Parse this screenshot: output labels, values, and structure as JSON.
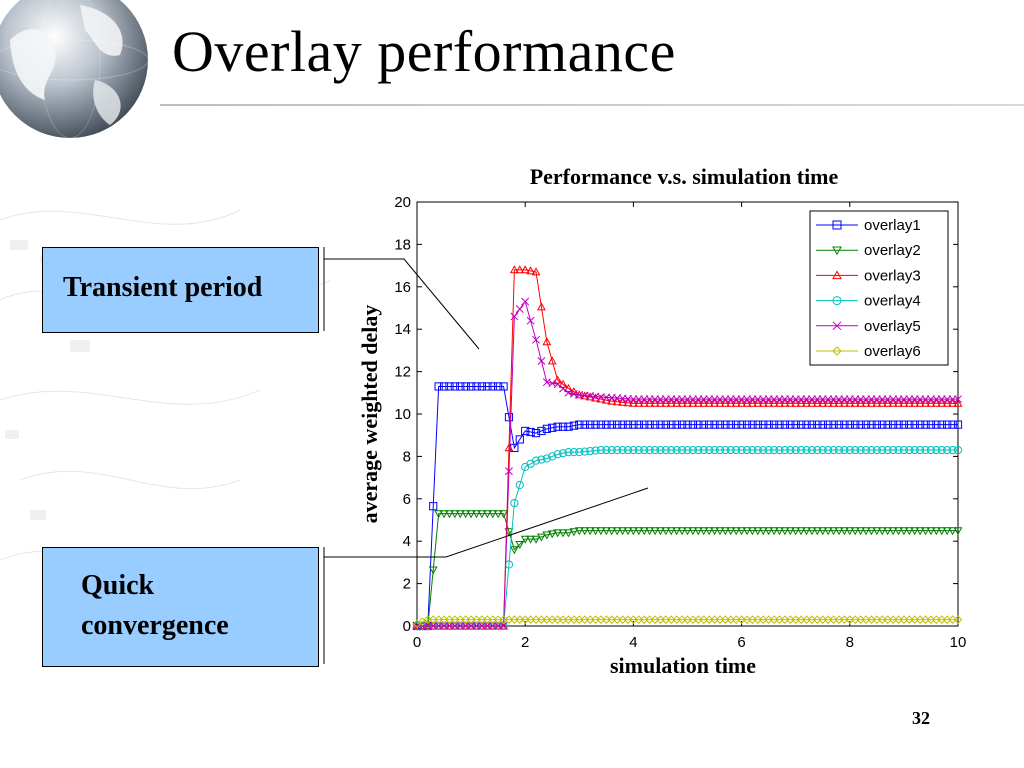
{
  "slide": {
    "title": "Overlay performance",
    "slide_number": "32",
    "callout_transient": "Transient period",
    "callout_quick": "Quick\nconvergence"
  },
  "icons": {
    "globe": "globe-icon"
  },
  "chart_data": {
    "type": "line",
    "title": "Performance v.s. simulation time",
    "xlabel": "simulation time",
    "ylabel": "average weighted delay",
    "xlim": [
      0,
      10
    ],
    "ylim": [
      0,
      20
    ],
    "xticks": [
      "0",
      "2",
      "4",
      "6",
      "8",
      "10"
    ],
    "yticks": [
      "0",
      "2",
      "4",
      "6",
      "8",
      "10",
      "12",
      "14",
      "16",
      "18",
      "20"
    ],
    "grid": false,
    "legend_position": "top-right",
    "series": [
      {
        "name": "overlay1",
        "color": "#0000ff",
        "marker": "square",
        "x": [
          0,
          0.2,
          0.4,
          1.6,
          1.8,
          2.0,
          2.2,
          2.4,
          2.6,
          2.8,
          3.0,
          3.4,
          4.0,
          10.0
        ],
        "y": [
          0,
          0,
          11.3,
          11.3,
          8.4,
          9.2,
          9.1,
          9.3,
          9.4,
          9.4,
          9.5,
          9.5,
          9.5,
          9.5
        ]
      },
      {
        "name": "overlay2",
        "color": "#008000",
        "marker": "triangle-down",
        "x": [
          0,
          0.2,
          0.4,
          1.6,
          1.8,
          2.0,
          2.2,
          2.4,
          2.6,
          2.8,
          3.0,
          3.4,
          4.0,
          10.0
        ],
        "y": [
          0,
          0,
          5.3,
          5.3,
          3.6,
          4.1,
          4.1,
          4.3,
          4.4,
          4.4,
          4.5,
          4.5,
          4.5,
          4.5
        ]
      },
      {
        "name": "overlay3",
        "color": "#ff0000",
        "marker": "triangle-up",
        "x": [
          0,
          1.6,
          1.8,
          2.0,
          2.2,
          2.4,
          2.6,
          2.8,
          3.0,
          3.2,
          3.6,
          4.0,
          10.0
        ],
        "y": [
          0,
          0,
          16.8,
          16.8,
          16.7,
          13.4,
          11.6,
          11.2,
          10.9,
          10.8,
          10.6,
          10.5,
          10.5
        ]
      },
      {
        "name": "overlay4",
        "color": "#00bfbf",
        "marker": "circle",
        "x": [
          0,
          1.6,
          1.8,
          2.0,
          2.2,
          2.4,
          2.6,
          2.8,
          3.0,
          3.4,
          4.0,
          10.0
        ],
        "y": [
          0,
          0,
          5.8,
          7.5,
          7.8,
          7.9,
          8.1,
          8.2,
          8.2,
          8.3,
          8.3,
          8.3
        ]
      },
      {
        "name": "overlay5",
        "color": "#bf00bf",
        "marker": "x",
        "x": [
          0,
          1.6,
          1.8,
          2.0,
          2.2,
          2.4,
          2.6,
          2.8,
          3.0,
          3.4,
          4.0,
          10.0
        ],
        "y": [
          0,
          0,
          14.6,
          15.3,
          13.5,
          11.5,
          11.4,
          11.0,
          10.9,
          10.8,
          10.7,
          10.7
        ]
      },
      {
        "name": "overlay6",
        "color": "#bfbf00",
        "marker": "diamond",
        "x": [
          0,
          0.2,
          10.0
        ],
        "y": [
          0.1,
          0.3,
          0.3
        ]
      }
    ]
  }
}
